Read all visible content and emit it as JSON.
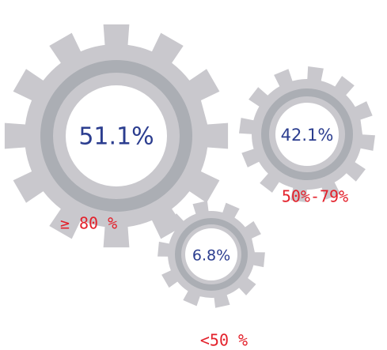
{
  "gears": [
    {
      "value": "51.1%",
      "label": "≥ 80 %"
    },
    {
      "value": "42.1%",
      "label": "50%-79%"
    },
    {
      "value": "6.8%",
      "label": "<50 %"
    }
  ]
}
